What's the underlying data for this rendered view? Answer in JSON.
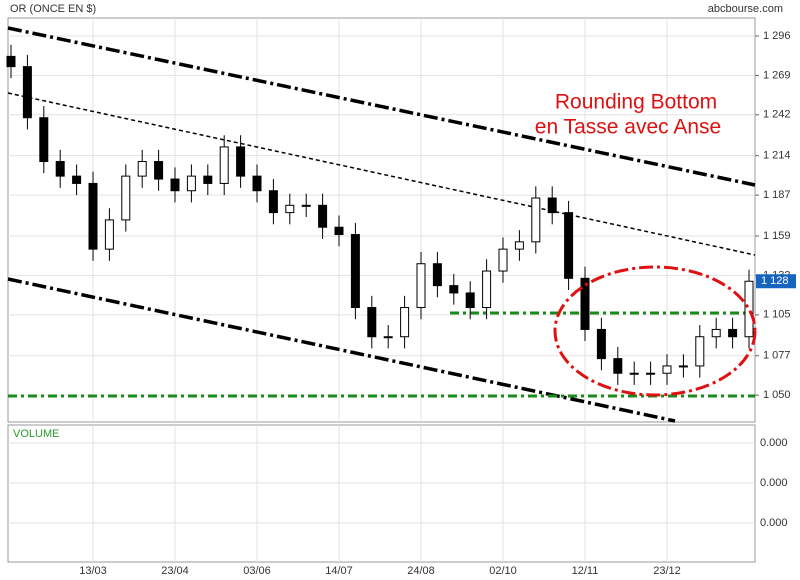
{
  "chart_data": {
    "type": "candlestick",
    "title": "OR (ONCE EN $)",
    "source": "abcbourse.com",
    "annotation": [
      "Rounding Bottom",
      "en Tasse avec Anse"
    ],
    "volume_label": "VOLUME",
    "categories": [
      null,
      null,
      null,
      null,
      null,
      "13/03",
      null,
      null,
      null,
      null,
      "23/04",
      null,
      null,
      null,
      null,
      "03/06",
      null,
      null,
      null,
      null,
      "14/07",
      null,
      null,
      null,
      null,
      "24/08",
      null,
      null,
      null,
      null,
      "02/10",
      null,
      null,
      null,
      null,
      "12/11",
      null,
      null,
      null,
      null,
      "23/12",
      null,
      null,
      null,
      null,
      null
    ],
    "open": [
      1282,
      1275,
      1240,
      1210,
      1200,
      1195,
      1150,
      1170,
      1200,
      1210,
      1198,
      1190,
      1200,
      1195,
      1220,
      1200,
      1190,
      1175,
      1180,
      1180,
      1165,
      1160,
      1110,
      1090,
      1090,
      1110,
      1140,
      1125,
      1120,
      1110,
      1135,
      1150,
      1155,
      1185,
      1175,
      1130,
      1095,
      1075,
      1065,
      1065,
      1065,
      1070,
      1070,
      1090,
      1095,
      1090
    ],
    "high": [
      1290,
      1283,
      1248,
      1218,
      1208,
      1203,
      1178,
      1208,
      1218,
      1218,
      1206,
      1208,
      1208,
      1228,
      1228,
      1208,
      1198,
      1188,
      1188,
      1188,
      1173,
      1168,
      1118,
      1098,
      1118,
      1148,
      1148,
      1133,
      1128,
      1143,
      1158,
      1163,
      1193,
      1193,
      1183,
      1138,
      1103,
      1083,
      1073,
      1073,
      1078,
      1078,
      1098,
      1103,
      1103,
      1136
    ],
    "low": [
      1267,
      1232,
      1202,
      1192,
      1187,
      1142,
      1142,
      1162,
      1192,
      1190,
      1182,
      1182,
      1187,
      1187,
      1192,
      1182,
      1167,
      1167,
      1172,
      1157,
      1152,
      1102,
      1082,
      1082,
      1082,
      1102,
      1117,
      1112,
      1102,
      1102,
      1127,
      1142,
      1147,
      1167,
      1122,
      1087,
      1067,
      1057,
      1057,
      1057,
      1057,
      1062,
      1062,
      1082,
      1082,
      1082
    ],
    "close": [
      1275,
      1240,
      1210,
      1200,
      1195,
      1150,
      1170,
      1200,
      1210,
      1198,
      1190,
      1200,
      1195,
      1220,
      1200,
      1190,
      1175,
      1180,
      1180,
      1165,
      1160,
      1110,
      1090,
      1090,
      1110,
      1140,
      1125,
      1120,
      1110,
      1135,
      1150,
      1155,
      1185,
      1175,
      1130,
      1095,
      1075,
      1065,
      1065,
      1065,
      1070,
      1070,
      1090,
      1095,
      1090,
      1128
    ],
    "up_color": "#ffffff",
    "down_color": "#000000",
    "last_price": {
      "value": 1128,
      "label": "1 128"
    },
    "ylim": [
      1031.6,
      1308.3
    ],
    "yticks": [
      {
        "value": 1050,
        "label": "1 050"
      },
      {
        "value": 1077,
        "label": "1 077"
      },
      {
        "value": 1105,
        "label": "1 105"
      },
      {
        "value": 1132,
        "label": "1 132"
      },
      {
        "value": 1159,
        "label": "1 159"
      },
      {
        "value": 1187,
        "label": "1 187"
      },
      {
        "value": 1214,
        "label": "1 214"
      },
      {
        "value": 1242,
        "label": "1 242"
      },
      {
        "value": 1269,
        "label": "1 269"
      },
      {
        "value": 1296,
        "label": "1 296"
      }
    ],
    "volume_yticks": [
      {
        "value": 0,
        "label": "0.000"
      },
      {
        "value": 0,
        "label": "0.000"
      },
      {
        "value": 0,
        "label": "0.000"
      }
    ],
    "grid": true
  }
}
